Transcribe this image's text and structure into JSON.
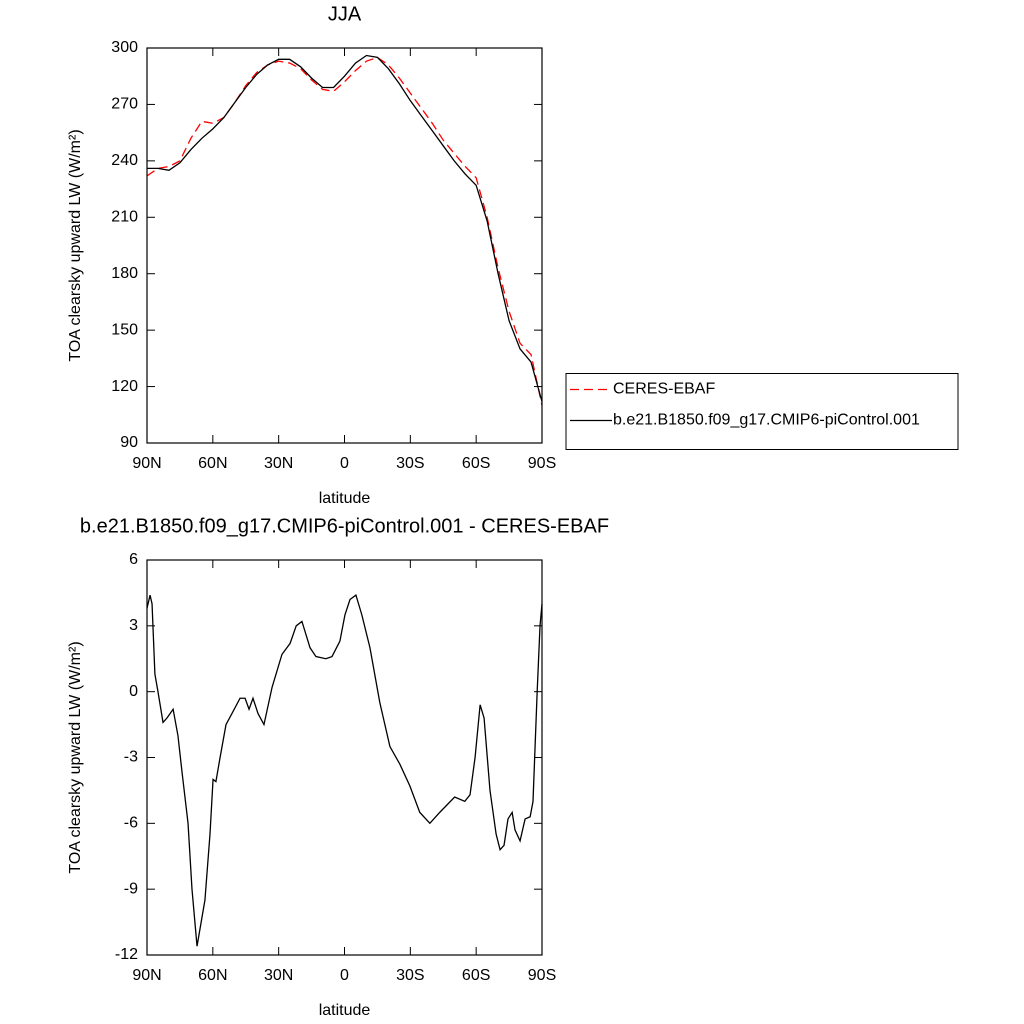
{
  "chart_data": [
    {
      "type": "line",
      "title": "JJA",
      "xlabel": "latitude",
      "ylabel": "TOA clearsky upward LW (W/m²)",
      "x": [
        90,
        85,
        80,
        75,
        70,
        65,
        60,
        55,
        50,
        45,
        40,
        35,
        30,
        25,
        20,
        15,
        10,
        5,
        0,
        -5,
        -10,
        -15,
        -20,
        -25,
        -30,
        -35,
        -40,
        -45,
        -50,
        -55,
        -60,
        -65,
        -70,
        -75,
        -80,
        -85,
        -90
      ],
      "series": [
        {
          "name": "CERES-EBAF",
          "color": "#ff0000",
          "line_style": "dashed",
          "values": [
            232,
            236,
            237,
            240,
            252,
            261,
            260,
            263,
            271,
            280,
            287,
            291,
            293,
            292,
            289,
            283,
            278,
            277,
            282,
            288,
            293,
            295,
            291,
            284,
            276,
            268,
            260,
            251,
            244,
            237,
            231,
            210,
            183,
            160,
            143,
            137,
            110
          ]
        },
        {
          "name": "b.e21.B1850.f09_g17.CMIP6-piControl.001",
          "color": "#000000",
          "line_style": "solid",
          "values": [
            236,
            236,
            235,
            239,
            246,
            252,
            257,
            263,
            271,
            279,
            286,
            291,
            294,
            294,
            290,
            284,
            279,
            279,
            285,
            292,
            296,
            295,
            289,
            281,
            272,
            264,
            256,
            248,
            240,
            233,
            227,
            208,
            180,
            155,
            140,
            133,
            112
          ]
        }
      ],
      "xlim": [
        90,
        -90
      ],
      "xticks": [
        {
          "value": 90,
          "label": "90N"
        },
        {
          "value": 60,
          "label": "60N"
        },
        {
          "value": 30,
          "label": "30N"
        },
        0,
        {
          "value": -30,
          "label": "30S"
        },
        {
          "value": -60,
          "label": "60S"
        },
        {
          "value": -90,
          "label": "90S"
        }
      ],
      "ylim": [
        90,
        300
      ],
      "yticks": [
        90,
        120,
        150,
        180,
        210,
        240,
        270,
        300
      ],
      "legend": "right"
    },
    {
      "type": "line",
      "title": "b.e21.B1850.f09_g17.CMIP6-piControl.001 - CERES-EBAF",
      "xlabel": "latitude",
      "ylabel": "TOA clearsky upward LW (W/m²)",
      "x": [
        90,
        88.6,
        87.7,
        86.4,
        85,
        82.7,
        80.9,
        78.1,
        75.9,
        74,
        71.3,
        69.5,
        67.2,
        63.6,
        61.3,
        59.9,
        58.6,
        56.7,
        54,
        51.3,
        47.6,
        45.3,
        43.5,
        41.7,
        39.4,
        36.7,
        33,
        28.5,
        24.8,
        22,
        19.4,
        15.7,
        13,
        8.5,
        5.7,
        2.1,
        -0.2,
        -2.5,
        -5.2,
        -7.9,
        -11.6,
        -16.1,
        -20.7,
        -25.2,
        -29.8,
        -34.3,
        -38.9,
        -43.4,
        -50.2,
        -54.8,
        -57.2,
        -59.5,
        -61.8,
        -63.6,
        -66.3,
        -69.1,
        -70.9,
        -72.7,
        -74.5,
        -76.4,
        -77.7,
        -80,
        -82.3,
        -84.6,
        -85.9,
        -87.8,
        -89.1,
        -90
      ],
      "values": [
        3.8,
        4.4,
        4.0,
        0.8,
        0,
        -1.4,
        -1.2,
        -0.8,
        -2,
        -3.7,
        -6,
        -9,
        -11.6,
        -9.5,
        -6.5,
        -4,
        -4.1,
        -3,
        -1.5,
        -1,
        -0.3,
        -0.3,
        -0.8,
        -0.3,
        -1,
        -1.5,
        0.2,
        1.7,
        2.2,
        3,
        3.2,
        2,
        1.6,
        1.5,
        1.6,
        2.3,
        3.5,
        4.2,
        4.4,
        3.5,
        2,
        -0.5,
        -2.5,
        -3.3,
        -4.3,
        -5.5,
        -6,
        -5.5,
        -4.8,
        -5,
        -4.7,
        -3,
        -0.6,
        -1.2,
        -4.5,
        -6.5,
        -7.2,
        -7,
        -5.8,
        -5.5,
        -6.3,
        -6.8,
        -5.8,
        -5.7,
        -5,
        0,
        3,
        4
      ],
      "color": "#000000",
      "xlim": [
        90,
        -90
      ],
      "xticks": [
        {
          "value": 90,
          "label": "90N"
        },
        {
          "value": 60,
          "label": "60N"
        },
        {
          "value": 30,
          "label": "30N"
        },
        0,
        {
          "value": -30,
          "label": "30S"
        },
        {
          "value": -60,
          "label": "60S"
        },
        {
          "value": -90,
          "label": "90S"
        }
      ],
      "ylim": [
        -12,
        6
      ],
      "yticks": [
        -12,
        -9,
        -6,
        -3,
        0,
        3,
        6
      ]
    }
  ]
}
